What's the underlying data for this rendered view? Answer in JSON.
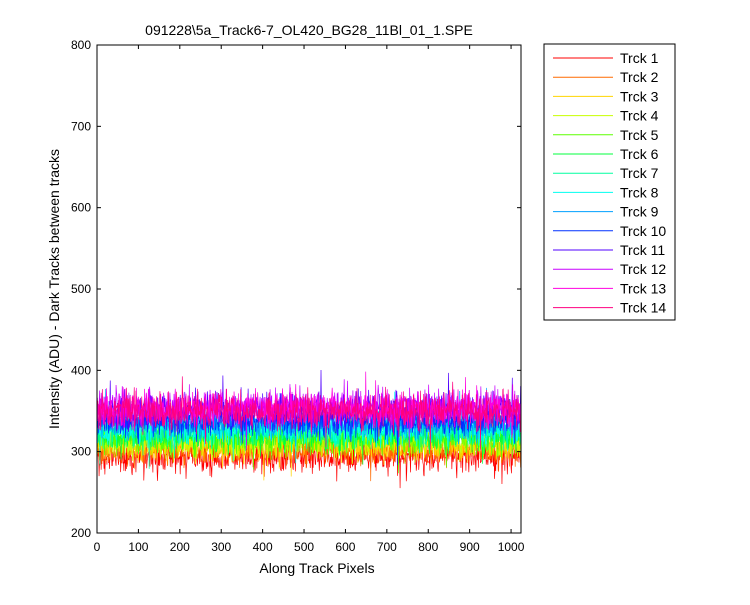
{
  "chart_data": {
    "type": "line",
    "title": "091228\\5a_Track6-7_OL420_BG28_11Bl_01_1.SPE",
    "xlabel": "Along Track Pixels",
    "ylabel": "Intensity (ADU) - Dark Tracks between tracks",
    "xlim": [
      0,
      1024
    ],
    "ylim": [
      200,
      800
    ],
    "xticks": [
      0,
      100,
      200,
      300,
      400,
      500,
      600,
      700,
      800,
      900,
      1000
    ],
    "yticks": [
      200,
      300,
      400,
      500,
      600,
      700,
      800
    ],
    "grid": false,
    "legend_position": "outside-right",
    "n_points": 1024,
    "series": [
      {
        "name": "Trck 1",
        "color": "#ff0000",
        "mean": 294,
        "noise": 11
      },
      {
        "name": "Trck 2",
        "color": "#ff6a00",
        "mean": 303,
        "noise": 10
      },
      {
        "name": "Trck 3",
        "color": "#ffd400",
        "mean": 309,
        "noise": 10
      },
      {
        "name": "Trck 4",
        "color": "#c8ff00",
        "mean": 313,
        "noise": 10
      },
      {
        "name": "Trck 5",
        "color": "#5dff00",
        "mean": 317,
        "noise": 10
      },
      {
        "name": "Trck 6",
        "color": "#00ff3c",
        "mean": 321,
        "noise": 10
      },
      {
        "name": "Trck 7",
        "color": "#00ffa0",
        "mean": 325,
        "noise": 10
      },
      {
        "name": "Trck 8",
        "color": "#00fff0",
        "mean": 329,
        "noise": 10
      },
      {
        "name": "Trck 9",
        "color": "#00a0ff",
        "mean": 334,
        "noise": 10
      },
      {
        "name": "Trck 10",
        "color": "#0030ff",
        "mean": 338,
        "noise": 10
      },
      {
        "name": "Trck 11",
        "color": "#5000ff",
        "mean": 350,
        "noise": 11
      },
      {
        "name": "Trck 12",
        "color": "#c800ff",
        "mean": 355,
        "noise": 11
      },
      {
        "name": "Trck 13",
        "color": "#ff00e0",
        "mean": 352,
        "noise": 11
      },
      {
        "name": "Trck 14",
        "color": "#ff0080",
        "mean": 350,
        "noise": 11
      }
    ]
  }
}
